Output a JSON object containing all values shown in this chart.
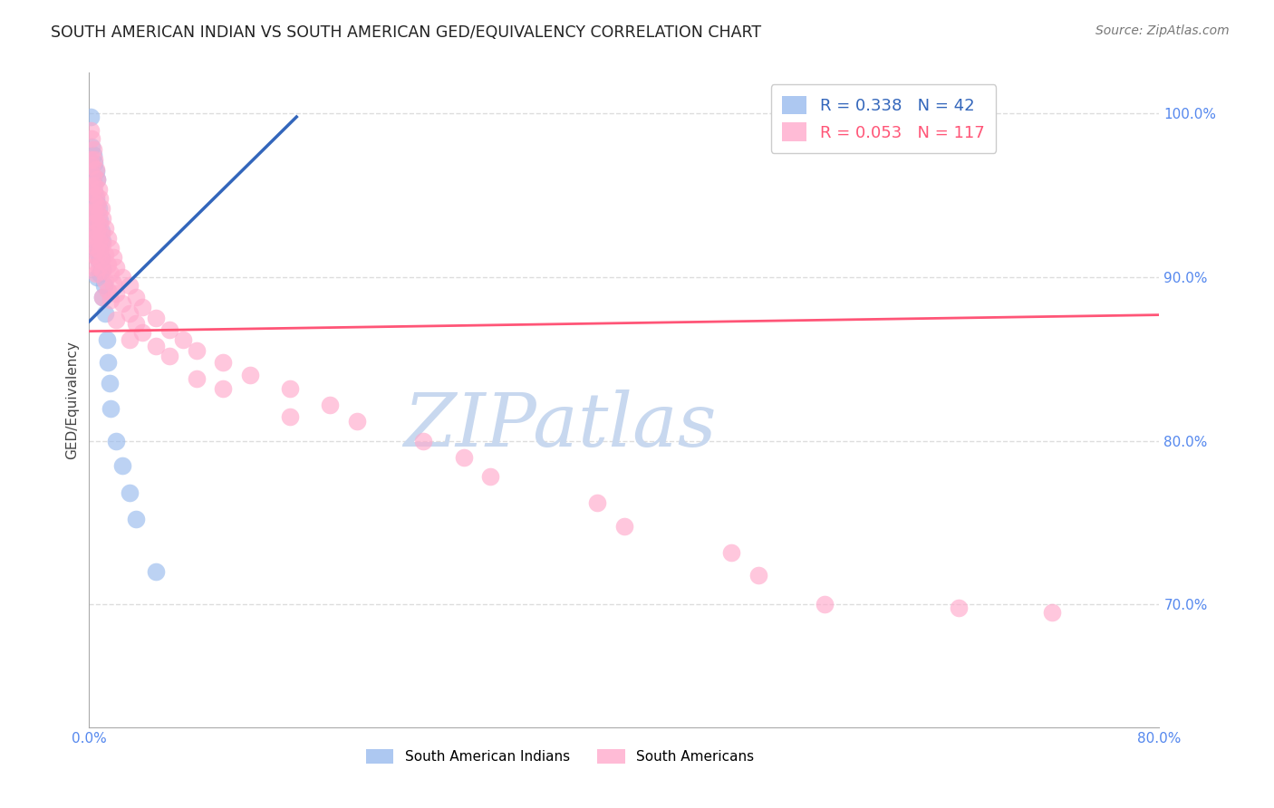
{
  "title": "SOUTH AMERICAN INDIAN VS SOUTH AMERICAN GED/EQUIVALENCY CORRELATION CHART",
  "source": "Source: ZipAtlas.com",
  "ylabel": "GED/Equivalency",
  "xlim": [
    0.0,
    0.8
  ],
  "ylim": [
    0.625,
    1.025
  ],
  "right_yticks": [
    1.0,
    0.9,
    0.8,
    0.7
  ],
  "right_ytick_labels": [
    "100.0%",
    "90.0%",
    "80.0%",
    "70.0%"
  ],
  "xtick_positions": [
    0.0,
    0.16,
    0.32,
    0.48,
    0.64,
    0.8
  ],
  "xtick_labels": [
    "0.0%",
    "",
    "",
    "",
    "",
    "80.0%"
  ],
  "watermark": "ZIPatlas",
  "legend_blue_r": "0.338",
  "legend_blue_n": "42",
  "legend_pink_r": "0.053",
  "legend_pink_n": "117",
  "blue_fill_color": "#99BBEE",
  "pink_fill_color": "#FFAACC",
  "blue_line_color": "#3366BB",
  "pink_line_color": "#FF5577",
  "blue_scatter_x": [
    0.001,
    0.002,
    0.002,
    0.002,
    0.003,
    0.003,
    0.003,
    0.003,
    0.004,
    0.004,
    0.004,
    0.005,
    0.005,
    0.005,
    0.005,
    0.006,
    0.006,
    0.006,
    0.006,
    0.006,
    0.007,
    0.007,
    0.007,
    0.008,
    0.008,
    0.008,
    0.009,
    0.009,
    0.01,
    0.01,
    0.01,
    0.011,
    0.012,
    0.013,
    0.014,
    0.015,
    0.016,
    0.02,
    0.025,
    0.03,
    0.035,
    0.05
  ],
  "blue_scatter_y": [
    0.998,
    0.98,
    0.96,
    0.945,
    0.975,
    0.958,
    0.942,
    0.928,
    0.97,
    0.952,
    0.935,
    0.965,
    0.948,
    0.932,
    0.918,
    0.96,
    0.945,
    0.93,
    0.915,
    0.9,
    0.942,
    0.925,
    0.91,
    0.935,
    0.918,
    0.902,
    0.928,
    0.912,
    0.922,
    0.905,
    0.888,
    0.895,
    0.878,
    0.862,
    0.848,
    0.835,
    0.82,
    0.8,
    0.785,
    0.768,
    0.752,
    0.72
  ],
  "pink_scatter_x": [
    0.001,
    0.001,
    0.001,
    0.001,
    0.001,
    0.002,
    0.002,
    0.002,
    0.002,
    0.002,
    0.002,
    0.003,
    0.003,
    0.003,
    0.003,
    0.003,
    0.004,
    0.004,
    0.004,
    0.004,
    0.005,
    0.005,
    0.005,
    0.005,
    0.005,
    0.006,
    0.006,
    0.006,
    0.006,
    0.007,
    0.007,
    0.007,
    0.007,
    0.008,
    0.008,
    0.008,
    0.009,
    0.009,
    0.009,
    0.01,
    0.01,
    0.01,
    0.01,
    0.012,
    0.012,
    0.012,
    0.014,
    0.014,
    0.014,
    0.016,
    0.016,
    0.016,
    0.018,
    0.018,
    0.02,
    0.02,
    0.02,
    0.025,
    0.025,
    0.03,
    0.03,
    0.03,
    0.035,
    0.035,
    0.04,
    0.04,
    0.05,
    0.05,
    0.06,
    0.06,
    0.07,
    0.08,
    0.08,
    0.1,
    0.1,
    0.12,
    0.15,
    0.15,
    0.18,
    0.2,
    0.25,
    0.28,
    0.3,
    0.38,
    0.4,
    0.48,
    0.5,
    0.55,
    0.65,
    0.72
  ],
  "pink_scatter_y": [
    0.99,
    0.972,
    0.956,
    0.94,
    0.926,
    0.985,
    0.968,
    0.952,
    0.936,
    0.92,
    0.906,
    0.978,
    0.962,
    0.946,
    0.93,
    0.914,
    0.972,
    0.956,
    0.94,
    0.924,
    0.966,
    0.95,
    0.934,
    0.918,
    0.902,
    0.96,
    0.944,
    0.928,
    0.912,
    0.954,
    0.938,
    0.922,
    0.906,
    0.948,
    0.932,
    0.916,
    0.942,
    0.926,
    0.91,
    0.936,
    0.92,
    0.904,
    0.888,
    0.93,
    0.914,
    0.898,
    0.924,
    0.908,
    0.892,
    0.918,
    0.902,
    0.886,
    0.912,
    0.896,
    0.906,
    0.89,
    0.874,
    0.9,
    0.884,
    0.895,
    0.878,
    0.862,
    0.888,
    0.872,
    0.882,
    0.866,
    0.875,
    0.858,
    0.868,
    0.852,
    0.862,
    0.855,
    0.838,
    0.848,
    0.832,
    0.84,
    0.832,
    0.815,
    0.822,
    0.812,
    0.8,
    0.79,
    0.778,
    0.762,
    0.748,
    0.732,
    0.718,
    0.7,
    0.698,
    0.695
  ],
  "blue_trend_x0": 0.0,
  "blue_trend_x1": 0.155,
  "blue_trend_y0": 0.873,
  "blue_trend_y1": 0.998,
  "pink_trend_x0": 0.0,
  "pink_trend_x1": 0.8,
  "pink_trend_y0": 0.867,
  "pink_trend_y1": 0.877,
  "grid_color": "#DDDDDD",
  "bg_color": "#FFFFFF",
  "title_fontsize": 12.5,
  "source_fontsize": 10,
  "tick_fontsize": 11,
  "ylabel_fontsize": 11,
  "legend_fontsize": 13,
  "watermark_color": "#C8D8EF",
  "watermark_fontsize": 60,
  "tick_color": "#5588EE",
  "bottom_legend_label1": "South American Indians",
  "bottom_legend_label2": "South Americans"
}
